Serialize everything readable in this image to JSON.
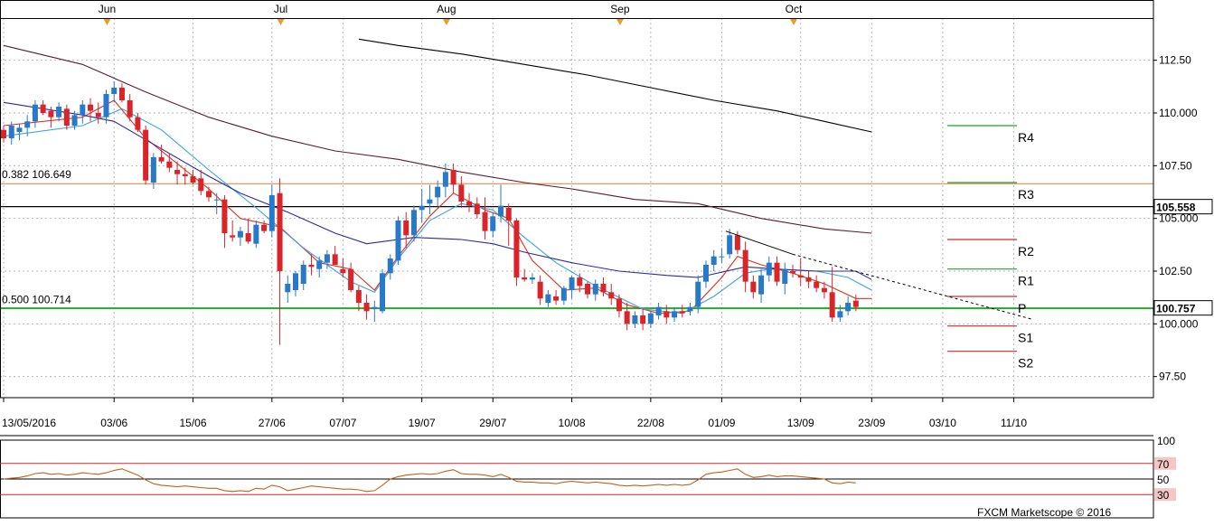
{
  "chart_data": {
    "type": "candlestick",
    "colors": {
      "bullish": "#2979c9",
      "bearish": "#d9252a",
      "sma_short": "#e0301e",
      "sma_mid": "#3aa3e0",
      "sma_long_blue": "#2a2aa0",
      "sma_long_dark": "#5a1e2e",
      "fib": "#e07a3a",
      "pivot_green": "#22a22a",
      "support_red": "#d9252a",
      "rsi": "#c0621e",
      "rsi_band": "#d9252a",
      "grid": "#b0b8c0"
    },
    "y_axis": {
      "ylim": [
        96.5,
        114.5
      ],
      "ticks": [
        "112.50",
        "110.000",
        "107.50",
        "105.000",
        "102.50",
        "100.000",
        "97.50"
      ],
      "tick_values": [
        112.5,
        110,
        107.5,
        105,
        102.5,
        100,
        97.5
      ]
    },
    "x_axis": {
      "date_labels": [
        "13/05/2016",
        "03/06",
        "15/06",
        "27/06",
        "07/07",
        "19/07",
        "29/07",
        "10/08",
        "22/08",
        "01/09",
        "13/09",
        "23/09",
        "03/10",
        "11/10"
      ],
      "date_index": [
        0,
        14,
        24,
        34,
        43,
        53,
        62,
        72,
        82,
        91,
        101,
        110,
        119,
        128
      ],
      "month_labels": [
        "Jun",
        "Jul",
        "Aug",
        "Sep",
        "Oct"
      ],
      "month_index": [
        13,
        35,
        56,
        78,
        100
      ]
    },
    "candles": [
      [
        109.2,
        109.4,
        108.6,
        108.8
      ],
      [
        108.8,
        109.6,
        108.5,
        109.4
      ],
      [
        109.1,
        109.5,
        108.7,
        109.3
      ],
      [
        109.3,
        109.9,
        108.9,
        109.6
      ],
      [
        109.6,
        110.6,
        109.3,
        110.4
      ],
      [
        110.4,
        110.6,
        109.9,
        110.0
      ],
      [
        110.1,
        110.3,
        109.3,
        109.8
      ],
      [
        109.8,
        110.5,
        109.6,
        110.3
      ],
      [
        110.2,
        110.4,
        109.2,
        109.4
      ],
      [
        109.4,
        110.1,
        109.2,
        109.9
      ],
      [
        109.9,
        110.6,
        109.5,
        110.4
      ],
      [
        110.4,
        110.7,
        109.6,
        110.1
      ],
      [
        110.0,
        110.5,
        109.5,
        109.8
      ],
      [
        109.8,
        111.1,
        109.5,
        110.9
      ],
      [
        110.9,
        111.5,
        110.5,
        111.2
      ],
      [
        111.2,
        111.4,
        110.5,
        110.6
      ],
      [
        110.6,
        110.9,
        109.6,
        109.8
      ],
      [
        109.8,
        110.0,
        109.1,
        109.2
      ],
      [
        109.2,
        109.4,
        106.6,
        106.8
      ],
      [
        106.7,
        108.1,
        106.4,
        107.9
      ],
      [
        107.9,
        108.5,
        107.6,
        107.7
      ],
      [
        107.7,
        108.1,
        107.2,
        107.4
      ],
      [
        107.3,
        107.7,
        106.6,
        107.1
      ],
      [
        107.1,
        107.4,
        106.6,
        107.0
      ],
      [
        107.0,
        107.3,
        106.6,
        106.7
      ],
      [
        106.9,
        107.3,
        106.1,
        106.3
      ],
      [
        106.3,
        106.5,
        105.8,
        106.0
      ],
      [
        105.9,
        106.2,
        105.2,
        105.9
      ],
      [
        105.9,
        106.1,
        103.6,
        104.3
      ],
      [
        104.2,
        104.9,
        103.9,
        104.1
      ],
      [
        104.1,
        104.6,
        103.7,
        104.4
      ],
      [
        104.3,
        105.0,
        103.8,
        103.9
      ],
      [
        103.8,
        104.9,
        103.6,
        104.7
      ],
      [
        104.7,
        104.9,
        104.3,
        104.4
      ],
      [
        104.4,
        106.6,
        104.1,
        106.1
      ],
      [
        106.2,
        106.9,
        99.0,
        102.5
      ],
      [
        101.5,
        102.3,
        101.0,
        101.9
      ],
      [
        101.6,
        102.5,
        101.3,
        102.4
      ],
      [
        101.9,
        103.0,
        101.6,
        102.8
      ],
      [
        102.8,
        103.3,
        102.3,
        102.7
      ],
      [
        102.6,
        103.2,
        102.2,
        103.0
      ],
      [
        102.9,
        103.5,
        102.6,
        103.3
      ],
      [
        103.3,
        103.7,
        102.8,
        102.8
      ],
      [
        102.6,
        103.1,
        102.2,
        102.4
      ],
      [
        102.6,
        102.9,
        101.5,
        101.6
      ],
      [
        101.6,
        101.8,
        100.6,
        101.0
      ],
      [
        101.0,
        101.4,
        100.2,
        100.6
      ],
      [
        100.7,
        101.1,
        100.1,
        100.8
      ],
      [
        100.6,
        102.6,
        100.5,
        102.4
      ],
      [
        102.4,
        103.3,
        102.1,
        103.1
      ],
      [
        103.0,
        105.1,
        102.8,
        104.9
      ],
      [
        104.9,
        105.3,
        103.6,
        104.2
      ],
      [
        104.2,
        105.6,
        103.9,
        105.4
      ],
      [
        105.4,
        106.4,
        104.8,
        105.6
      ],
      [
        105.7,
        106.6,
        105.2,
        105.9
      ],
      [
        106.0,
        106.8,
        105.5,
        106.5
      ],
      [
        106.5,
        107.6,
        106.0,
        107.2
      ],
      [
        107.3,
        107.6,
        106.2,
        106.6
      ],
      [
        106.6,
        107.0,
        105.5,
        105.8
      ],
      [
        105.8,
        106.2,
        105.3,
        105.6
      ],
      [
        105.7,
        106.0,
        105.0,
        105.2
      ],
      [
        105.3,
        106.0,
        104.0,
        104.4
      ],
      [
        104.4,
        105.3,
        104.1,
        105.1
      ],
      [
        105.1,
        106.6,
        104.8,
        105.6
      ],
      [
        105.5,
        105.7,
        103.7,
        104.9
      ],
      [
        104.9,
        105.0,
        101.8,
        102.2
      ],
      [
        102.2,
        102.6,
        102.0,
        102.1
      ],
      [
        102.1,
        102.4,
        101.9,
        102.2
      ],
      [
        102.0,
        102.3,
        100.9,
        101.2
      ],
      [
        101.0,
        101.6,
        100.8,
        101.4
      ],
      [
        101.3,
        101.6,
        100.9,
        101.1
      ],
      [
        101.1,
        101.8,
        100.9,
        101.7
      ],
      [
        101.6,
        102.3,
        101.2,
        102.2
      ],
      [
        102.2,
        102.4,
        101.5,
        101.8
      ],
      [
        101.9,
        102.0,
        101.2,
        101.4
      ],
      [
        101.4,
        102.1,
        101.1,
        101.9
      ],
      [
        101.9,
        102.2,
        101.3,
        101.5
      ],
      [
        101.5,
        101.9,
        100.9,
        101.2
      ],
      [
        101.2,
        101.4,
        100.3,
        100.6
      ],
      [
        100.6,
        101.0,
        99.7,
        100.0
      ],
      [
        100.0,
        100.6,
        99.8,
        100.4
      ],
      [
        100.4,
        100.7,
        99.7,
        100.0
      ],
      [
        100.0,
        100.6,
        99.8,
        100.5
      ],
      [
        100.4,
        101.0,
        100.2,
        100.8
      ],
      [
        100.6,
        100.9,
        100.0,
        100.3
      ],
      [
        100.3,
        100.8,
        100.1,
        100.6
      ],
      [
        100.6,
        100.9,
        100.3,
        100.5
      ],
      [
        100.6,
        101.0,
        100.4,
        100.8
      ],
      [
        100.8,
        102.3,
        100.5,
        102.0
      ],
      [
        102.0,
        103.0,
        101.7,
        102.8
      ],
      [
        102.8,
        103.5,
        102.5,
        103.2
      ],
      [
        103.2,
        103.6,
        102.9,
        103.2
      ],
      [
        103.3,
        104.5,
        103.1,
        104.2
      ],
      [
        104.2,
        104.4,
        103.3,
        103.5
      ],
      [
        103.5,
        103.9,
        101.5,
        102.0
      ],
      [
        102.0,
        102.3,
        101.2,
        101.5
      ],
      [
        101.4,
        102.6,
        101.0,
        102.3
      ],
      [
        102.3,
        103.2,
        102.0,
        102.9
      ],
      [
        102.9,
        103.2,
        101.8,
        102.0
      ],
      [
        101.9,
        102.9,
        101.4,
        102.6
      ],
      [
        102.5,
        102.8,
        102.2,
        102.4
      ],
      [
        102.3,
        103.1,
        101.8,
        102.2
      ],
      [
        102.2,
        102.5,
        101.7,
        102.0
      ],
      [
        102.0,
        102.3,
        101.5,
        101.7
      ],
      [
        101.7,
        102.0,
        101.2,
        101.5
      ],
      [
        101.5,
        102.7,
        100.1,
        100.3
      ],
      [
        100.3,
        100.9,
        100.1,
        100.6
      ],
      [
        100.6,
        101.3,
        100.4,
        101.0
      ],
      [
        101.1,
        101.4,
        100.6,
        100.8
      ]
    ],
    "sma": [
      {
        "color": "sma_short",
        "points": [
          [
            0,
            109.4
          ],
          [
            10,
            109.8
          ],
          [
            14,
            110.6
          ],
          [
            18,
            108.8
          ],
          [
            26,
            106.4
          ],
          [
            30,
            105.0
          ],
          [
            35,
            104.6
          ],
          [
            40,
            102.9
          ],
          [
            44,
            102.6
          ],
          [
            47,
            101.6
          ],
          [
            50,
            103.2
          ],
          [
            54,
            105.1
          ],
          [
            57,
            106.2
          ],
          [
            61,
            105.4
          ],
          [
            64,
            105.0
          ],
          [
            67,
            103.0
          ],
          [
            71,
            101.6
          ],
          [
            75,
            101.7
          ],
          [
            79,
            100.9
          ],
          [
            83,
            100.5
          ],
          [
            87,
            100.6
          ],
          [
            91,
            102.2
          ],
          [
            93,
            103.2
          ],
          [
            96,
            102.8
          ],
          [
            100,
            102.4
          ],
          [
            104,
            101.9
          ],
          [
            108,
            101.2
          ],
          [
            110,
            101.2
          ]
        ]
      },
      {
        "color": "sma_mid",
        "points": [
          [
            0,
            108.9
          ],
          [
            10,
            109.4
          ],
          [
            15,
            110.2
          ],
          [
            20,
            109.2
          ],
          [
            26,
            107.3
          ],
          [
            32,
            105.5
          ],
          [
            38,
            103.6
          ],
          [
            44,
            102.0
          ],
          [
            47,
            101.5
          ],
          [
            50,
            103.1
          ],
          [
            54,
            104.9
          ],
          [
            58,
            105.7
          ],
          [
            62,
            105.4
          ],
          [
            66,
            104.1
          ],
          [
            70,
            102.9
          ],
          [
            75,
            101.8
          ],
          [
            81,
            100.7
          ],
          [
            86,
            100.5
          ],
          [
            90,
            101.3
          ],
          [
            94,
            102.4
          ],
          [
            97,
            102.6
          ],
          [
            103,
            102.5
          ],
          [
            107,
            102.2
          ],
          [
            110,
            101.6
          ]
        ]
      },
      {
        "color": "sma_long_blue",
        "points": [
          [
            0,
            110.5
          ],
          [
            10,
            109.9
          ],
          [
            14,
            109.6
          ],
          [
            20,
            108.3
          ],
          [
            26,
            107.0
          ],
          [
            30,
            106.2
          ],
          [
            36,
            105.3
          ],
          [
            42,
            104.3
          ],
          [
            46,
            103.8
          ],
          [
            52,
            104.1
          ],
          [
            58,
            104.0
          ],
          [
            62,
            103.8
          ],
          [
            66,
            103.4
          ],
          [
            72,
            102.9
          ],
          [
            78,
            102.5
          ],
          [
            84,
            102.3
          ],
          [
            88,
            102.2
          ],
          [
            94,
            102.7
          ],
          [
            98,
            102.6
          ],
          [
            103,
            102.5
          ],
          [
            108,
            102.5
          ],
          [
            110,
            102.1
          ]
        ]
      },
      {
        "color": "sma_long_dark",
        "points": [
          [
            0,
            113.2
          ],
          [
            10,
            112.3
          ],
          [
            18,
            111.0
          ],
          [
            26,
            109.8
          ],
          [
            34,
            108.9
          ],
          [
            42,
            108.2
          ],
          [
            50,
            107.8
          ],
          [
            58,
            107.2
          ],
          [
            66,
            106.7
          ],
          [
            72,
            106.4
          ],
          [
            80,
            105.9
          ],
          [
            88,
            105.7
          ],
          [
            96,
            105.0
          ],
          [
            104,
            104.5
          ],
          [
            110,
            104.3
          ]
        ]
      },
      {
        "color": "#000000",
        "points": [
          [
            45,
            113.5
          ],
          [
            50,
            113.2
          ],
          [
            58,
            112.8
          ],
          [
            66,
            112.3
          ],
          [
            74,
            111.8
          ],
          [
            82,
            111.2
          ],
          [
            90,
            110.6
          ],
          [
            98,
            110.1
          ],
          [
            104,
            109.6
          ],
          [
            110,
            109.1
          ]
        ]
      }
    ],
    "trendlines": [
      {
        "points": [
          [
            91.5,
            104.4
          ],
          [
            100,
            103.3
          ]
        ],
        "dashed": false
      },
      {
        "points": [
          [
            100,
            103.3
          ],
          [
            130.5,
            100.2
          ]
        ],
        "dashed": true
      }
    ],
    "horizontal_levels": [
      {
        "value": 105.558,
        "color": "#000000",
        "tag": "105.558",
        "tag_bg": "#ffffff"
      },
      {
        "value": 100.757,
        "color": "#22a22a",
        "tag": "100.757",
        "tag_bg": "#ffffff"
      }
    ],
    "fib_lines": [
      {
        "label": "0.382 106.649",
        "value": 106.649,
        "color": "fib"
      },
      {
        "label": "0.500 100.714",
        "value": 100.714,
        "color": "pivot_green"
      }
    ],
    "pivots": [
      {
        "label": "R4",
        "value": 109.4,
        "color": "pivot_green"
      },
      {
        "label": "R3",
        "value": 106.7,
        "color": "pivot_green"
      },
      {
        "label": "R2",
        "value": 104.0,
        "color": "support_red"
      },
      {
        "label": "R1",
        "value": 102.6,
        "color": "pivot_green"
      },
      {
        "label": "P",
        "value": 101.3,
        "color": "support_red"
      },
      {
        "label": "S1",
        "value": 99.9,
        "color": "support_red"
      },
      {
        "label": "S2",
        "value": 98.7,
        "color": "support_red"
      }
    ],
    "rsi": {
      "ylim": [
        0,
        100
      ],
      "ticks": [
        "100",
        "70",
        "50",
        "30"
      ],
      "tick_values": [
        100,
        70,
        50,
        30
      ],
      "tag_bgs": [
        "#ffffff",
        "#f4c6c6",
        "#ffffff",
        "#f4c6c6"
      ],
      "values": [
        50,
        51,
        52,
        54,
        57,
        58,
        56,
        57,
        55,
        56,
        58,
        57,
        56,
        58,
        61,
        63,
        59,
        55,
        49,
        44,
        42,
        41,
        40,
        41,
        40,
        39,
        38,
        38,
        35,
        34,
        35,
        34,
        38,
        37,
        42,
        40,
        35,
        37,
        39,
        41,
        40,
        39,
        38,
        37,
        37,
        36,
        34,
        35,
        42,
        50,
        53,
        55,
        56,
        57,
        56,
        57,
        60,
        62,
        57,
        56,
        56,
        55,
        53,
        56,
        52,
        47,
        46,
        46,
        45,
        45,
        44,
        46,
        47,
        46,
        45,
        46,
        45,
        44,
        42,
        41,
        42,
        41,
        42,
        43,
        42,
        43,
        42,
        43,
        49,
        56,
        58,
        59,
        61,
        63,
        56,
        52,
        53,
        55,
        53,
        54,
        54,
        53,
        52,
        51,
        50,
        45,
        44,
        46,
        45
      ]
    },
    "credit": "FXCM Marketscope © 2016"
  }
}
